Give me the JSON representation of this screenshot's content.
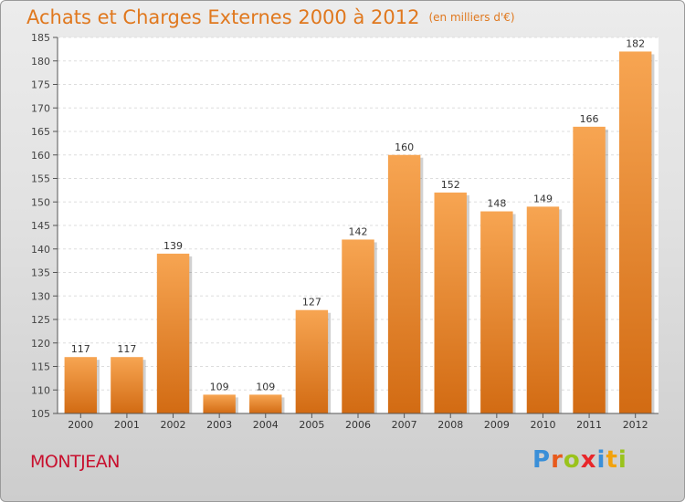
{
  "header": {
    "title": "Achats et Charges Externes 2000 à 2012",
    "unit": "(en milliers d'€)"
  },
  "footer": {
    "commune": "MONTJEAN",
    "brand_letters": [
      "P",
      "r",
      "o",
      "x",
      "i",
      "t",
      "i"
    ]
  },
  "colors": {
    "title": "#e0781e",
    "bar_top": "#f7a552",
    "bar_bottom": "#d26b13",
    "commune": "#c8102e",
    "brand": [
      "#3a8fd8",
      "#e85a1c",
      "#9ac31c",
      "#e8262a",
      "#3a8fd8",
      "#f2a20d",
      "#9ac31c"
    ]
  },
  "chart_data": {
    "type": "bar",
    "categories": [
      "2000",
      "2001",
      "2002",
      "2003",
      "2004",
      "2005",
      "2006",
      "2007",
      "2008",
      "2009",
      "2010",
      "2011",
      "2012"
    ],
    "values": [
      117,
      117,
      139,
      109,
      109,
      127,
      142,
      160,
      152,
      148,
      149,
      166,
      182
    ],
    "title": "Achats et Charges Externes 2000 à 2012",
    "xlabel": "",
    "ylabel": "",
    "ylim": [
      105,
      185
    ],
    "yticks": [
      105,
      110,
      115,
      120,
      125,
      130,
      135,
      140,
      145,
      150,
      155,
      160,
      165,
      170,
      175,
      180,
      185
    ],
    "grid": true,
    "data_labels": true
  }
}
